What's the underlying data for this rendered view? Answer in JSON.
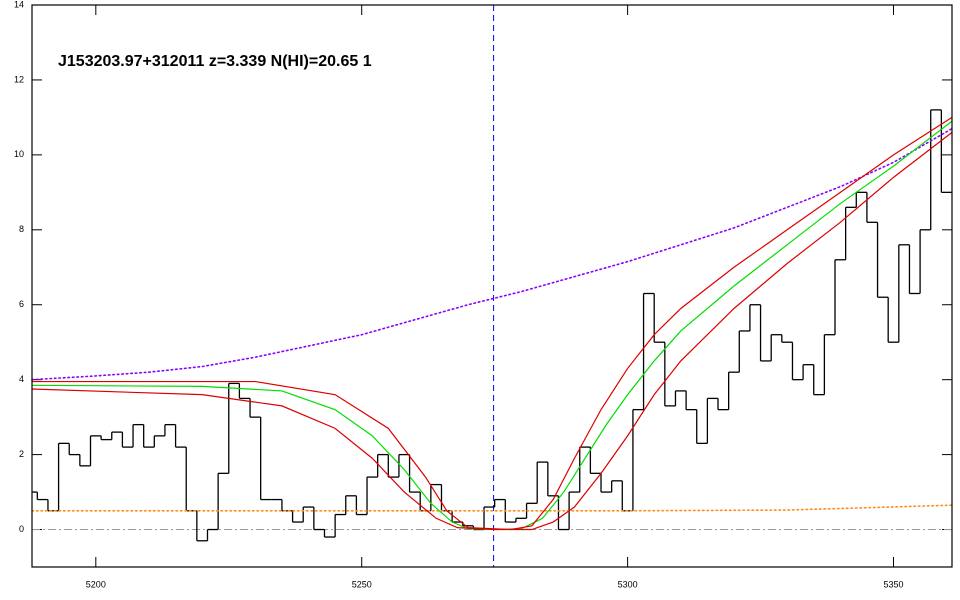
{
  "chart_data": {
    "type": "spectrum",
    "title": "J153203.97+312011 z=3.339 N(HI)=20.65 1",
    "xlim": [
      5188,
      5361
    ],
    "ylim": [
      -1,
      14
    ],
    "xticks": [
      5200,
      5250,
      5300,
      5350
    ],
    "yticks": [
      0,
      2,
      4,
      6,
      8,
      10,
      12,
      14
    ],
    "vline": {
      "value": 5274.8,
      "color": "#0000ff"
    },
    "hline": {
      "value": 0,
      "color": "#999999"
    },
    "series": [
      {
        "style": "step",
        "color": "#000000",
        "x": [
          5188,
          5190,
          5192,
          5194,
          5196,
          5198,
          5200,
          5202,
          5204,
          5206,
          5208,
          5210,
          5212,
          5214,
          5216,
          5218,
          5220,
          5222,
          5224,
          5226,
          5228,
          5230,
          5232,
          5234,
          5236,
          5238,
          5240,
          5242,
          5244,
          5246,
          5248,
          5250,
          5252,
          5254,
          5256,
          5258,
          5260,
          5262,
          5264,
          5266,
          5268,
          5270,
          5272,
          5274,
          5276,
          5278,
          5280,
          5282,
          5284,
          5286,
          5288,
          5290,
          5292,
          5294,
          5296,
          5298,
          5300,
          5302,
          5304,
          5306,
          5308,
          5310,
          5312,
          5314,
          5316,
          5318,
          5320,
          5322,
          5324,
          5326,
          5328,
          5330,
          5332,
          5334,
          5336,
          5338,
          5340,
          5342,
          5344,
          5346,
          5348,
          5350,
          5352,
          5354,
          5356,
          5358,
          5360
        ],
        "values": [
          1.0,
          0.8,
          0.5,
          2.3,
          2.0,
          1.7,
          2.5,
          2.4,
          2.6,
          2.2,
          2.8,
          2.2,
          2.5,
          2.8,
          2.2,
          0.5,
          -0.3,
          0.0,
          1.5,
          3.9,
          3.5,
          3.0,
          0.8,
          0.8,
          0.5,
          0.2,
          0.6,
          0.0,
          -0.2,
          0.4,
          0.9,
          0.4,
          1.4,
          2.0,
          1.4,
          2.0,
          1.0,
          0.5,
          1.2,
          0.5,
          0.2,
          0.1,
          0.0,
          0.6,
          0.8,
          0.2,
          0.3,
          0.7,
          1.8,
          0.9,
          0.0,
          1.0,
          2.2,
          1.5,
          1.0,
          1.3,
          0.5,
          3.2,
          6.3,
          5.0,
          3.3,
          3.7,
          3.2,
          2.3,
          3.5,
          3.2,
          4.2,
          5.3,
          6.0,
          4.5,
          5.2,
          5.0,
          4.0,
          4.4,
          3.6,
          5.2,
          7.2,
          8.6,
          9.0,
          8.2,
          6.2,
          5.0,
          7.6,
          6.3,
          8.0,
          11.2,
          9.0
        ]
      },
      {
        "style": "dotted",
        "color": "#8a00ff",
        "x": [
          5188,
          5200,
          5210,
          5220,
          5230,
          5240,
          5250,
          5260,
          5270,
          5280,
          5290,
          5300,
          5310,
          5320,
          5330,
          5340,
          5350,
          5361
        ],
        "values": [
          4.0,
          4.1,
          4.2,
          4.35,
          4.6,
          4.9,
          5.2,
          5.6,
          6.0,
          6.35,
          6.75,
          7.15,
          7.6,
          8.05,
          8.6,
          9.15,
          9.8,
          10.7
        ]
      },
      {
        "style": "dotted",
        "color": "#ff8c1a",
        "x": [
          5188,
          5250,
          5300,
          5330,
          5361
        ],
        "values": [
          0.5,
          0.5,
          0.5,
          0.52,
          0.65
        ]
      },
      {
        "style": "solid",
        "color": "#00dd00",
        "x": [
          5188,
          5220,
          5235,
          5245,
          5252,
          5258,
          5263,
          5267,
          5270,
          5275,
          5280,
          5284,
          5288,
          5292,
          5296,
          5300,
          5305,
          5310,
          5320,
          5330,
          5340,
          5350,
          5361
        ],
        "values": [
          3.85,
          3.82,
          3.7,
          3.2,
          2.5,
          1.6,
          0.7,
          0.2,
          0.02,
          0,
          0.02,
          0.3,
          1.0,
          1.9,
          2.8,
          3.6,
          4.5,
          5.3,
          6.5,
          7.6,
          8.7,
          9.7,
          10.9
        ]
      },
      {
        "style": "solid",
        "color": "#dd0000",
        "x": [
          5188,
          5230,
          5245,
          5255,
          5262,
          5266,
          5270,
          5278,
          5282,
          5286,
          5290,
          5295,
          5300,
          5305,
          5310,
          5320,
          5330,
          5340,
          5350,
          5361
        ],
        "values": [
          3.95,
          3.95,
          3.6,
          2.7,
          1.4,
          0.5,
          0.05,
          0,
          0.1,
          0.8,
          1.9,
          3.2,
          4.3,
          5.2,
          5.9,
          7.0,
          8.0,
          9.0,
          10.0,
          11.0
        ]
      },
      {
        "style": "solid",
        "color": "#dd0000",
        "x": [
          5188,
          5220,
          5235,
          5245,
          5252,
          5258,
          5264,
          5268,
          5275,
          5282,
          5286,
          5290,
          5295,
          5300,
          5305,
          5310,
          5320,
          5330,
          5340,
          5350,
          5361
        ],
        "values": [
          3.75,
          3.6,
          3.3,
          2.7,
          1.9,
          1.0,
          0.3,
          0.05,
          0,
          0,
          0.2,
          0.6,
          1.5,
          2.5,
          3.6,
          4.5,
          5.9,
          7.1,
          8.2,
          9.4,
          10.6
        ]
      }
    ]
  }
}
